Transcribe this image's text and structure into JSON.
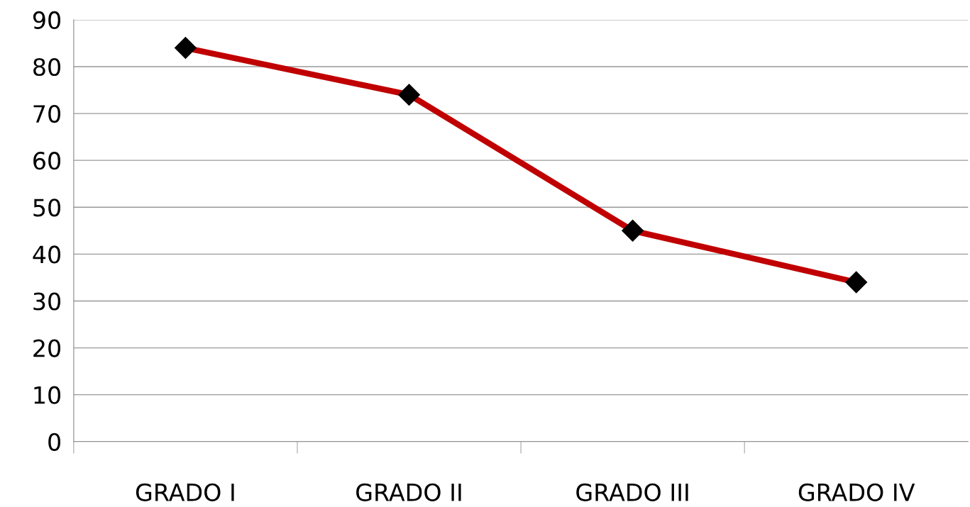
{
  "chart_data": {
    "type": "line",
    "categories": [
      "GRADO I",
      "GRADO II",
      "GRADO III",
      "GRADO IV"
    ],
    "series": [
      {
        "color": "#c00000",
        "values": [
          84,
          74,
          45,
          34
        ]
      }
    ],
    "ylim": [
      0,
      90
    ],
    "yticks": [
      0,
      10,
      20,
      30,
      40,
      50,
      60,
      70,
      80,
      90
    ],
    "grid": "y",
    "marker": "diamond",
    "legend": false
  }
}
